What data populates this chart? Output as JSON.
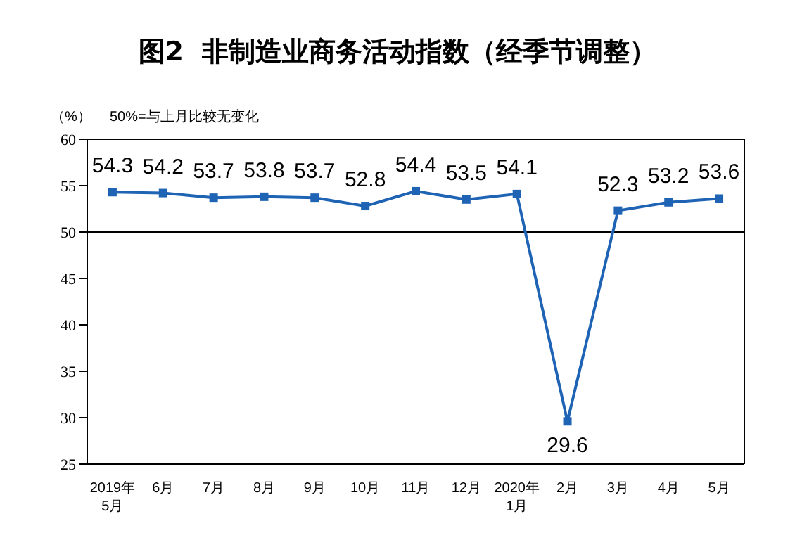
{
  "chart_data": {
    "type": "line",
    "title": "图2  非制造业商务活动指数（经季节调整）",
    "ylabel": "（%）",
    "annotations": [
      "50%=与上月比较无变化"
    ],
    "categories": [
      "2019年\n5月",
      "6月",
      "7月",
      "8月",
      "9月",
      "10月",
      "11月",
      "12月",
      "2020年\n1月",
      "2月",
      "3月",
      "4月",
      "5月"
    ],
    "series": [
      {
        "color": "#1f64b4",
        "values": [
          54.3,
          54.2,
          53.7,
          53.8,
          53.7,
          52.8,
          54.4,
          53.5,
          54.1,
          29.6,
          52.3,
          53.2,
          53.6
        ]
      }
    ],
    "ylim": [
      25,
      60
    ],
    "yticks": [
      25,
      30,
      35,
      40,
      45,
      50,
      55,
      60
    ],
    "ref_lines": [
      {
        "axis": "y",
        "value": 50,
        "color": "#000000"
      }
    ],
    "data_labels": true,
    "marker": "square"
  }
}
